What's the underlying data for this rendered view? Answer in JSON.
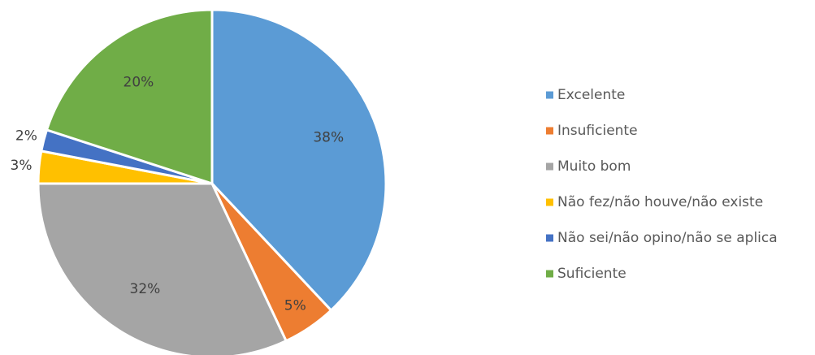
{
  "chart_data": {
    "type": "pie",
    "categories": [
      "Excelente",
      "Insuficiente",
      "Muito bom",
      "Não fez/não houve/não existe",
      "Não sei/não opino/não se aplica",
      "Suficiente"
    ],
    "values": [
      38,
      5,
      32,
      3,
      2,
      20
    ],
    "value_labels": [
      "38%",
      "5%",
      "32%",
      "3%",
      "2%",
      "20%"
    ],
    "colors": [
      "#5b9bd5",
      "#ed7d31",
      "#a5a5a5",
      "#ffc000",
      "#4472c4",
      "#70ad47"
    ],
    "legend": "right"
  }
}
